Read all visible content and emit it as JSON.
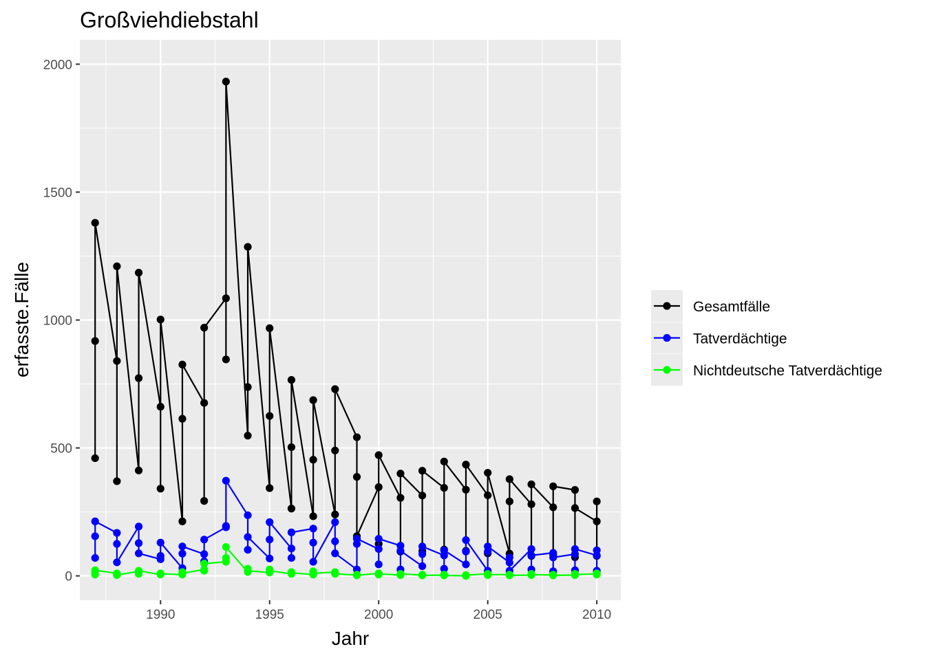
{
  "chart_data": {
    "type": "line",
    "title": "Großviehdiebstahl",
    "xlabel": "Jahr",
    "ylabel": "erfasste.Fälle",
    "xlim": [
      1986.3,
      2011.1
    ],
    "ylim": [
      -95,
      2095
    ],
    "x_ticks": [
      1990,
      1995,
      2000,
      2005,
      2010
    ],
    "y_ticks": [
      0,
      500,
      1000,
      1500,
      2000
    ],
    "grid": true,
    "legend_position": "right",
    "series": [
      {
        "name": "Gesamtfälle",
        "color": "#000000",
        "points": [
          [
            1987,
            460
          ],
          [
            1987,
            918
          ],
          [
            1987,
            1380
          ],
          [
            1988,
            840
          ],
          [
            1988,
            370
          ],
          [
            1988,
            1210
          ],
          [
            1989,
            412
          ],
          [
            1989,
            773
          ],
          [
            1989,
            1185
          ],
          [
            1990,
            661
          ],
          [
            1990,
            341
          ],
          [
            1990,
            1002
          ],
          [
            1991,
            213
          ],
          [
            1991,
            614
          ],
          [
            1991,
            826
          ],
          [
            1992,
            676
          ],
          [
            1992,
            293
          ],
          [
            1992,
            970
          ],
          [
            1993,
            1085
          ],
          [
            1993,
            846
          ],
          [
            1993,
            1932
          ],
          [
            1994,
            548
          ],
          [
            1994,
            738
          ],
          [
            1994,
            1286
          ],
          [
            1995,
            343
          ],
          [
            1995,
            625
          ],
          [
            1995,
            968
          ],
          [
            1996,
            263
          ],
          [
            1996,
            503
          ],
          [
            1996,
            766
          ],
          [
            1997,
            233
          ],
          [
            1997,
            454
          ],
          [
            1997,
            687
          ],
          [
            1998,
            240
          ],
          [
            1998,
            490
          ],
          [
            1998,
            730
          ],
          [
            1999,
            542
          ],
          [
            1999,
            387
          ],
          [
            1999,
            155
          ],
          [
            2000,
            347
          ],
          [
            2000,
            125
          ],
          [
            2000,
            472
          ],
          [
            2001,
            305
          ],
          [
            2001,
            95
          ],
          [
            2001,
            400
          ],
          [
            2002,
            314
          ],
          [
            2002,
            97
          ],
          [
            2002,
            411
          ],
          [
            2003,
            344
          ],
          [
            2003,
            103
          ],
          [
            2003,
            447
          ],
          [
            2004,
            337
          ],
          [
            2004,
            98
          ],
          [
            2004,
            435
          ],
          [
            2005,
            315
          ],
          [
            2005,
            88
          ],
          [
            2005,
            403
          ],
          [
            2006,
            87
          ],
          [
            2006,
            291
          ],
          [
            2006,
            378
          ],
          [
            2007,
            280
          ],
          [
            2007,
            78
          ],
          [
            2007,
            358
          ],
          [
            2008,
            268
          ],
          [
            2008,
            82
          ],
          [
            2008,
            350
          ],
          [
            2009,
            336
          ],
          [
            2009,
            73
          ],
          [
            2009,
            265
          ],
          [
            2010,
            213
          ],
          [
            2010,
            78
          ],
          [
            2010,
            291
          ]
        ]
      },
      {
        "name": "Tatverdächtige",
        "color": "#0000ff",
        "points": [
          [
            1987,
            70
          ],
          [
            1987,
            155
          ],
          [
            1987,
            213
          ],
          [
            1988,
            168
          ],
          [
            1988,
            125
          ],
          [
            1988,
            53
          ],
          [
            1989,
            193
          ],
          [
            1989,
            128
          ],
          [
            1989,
            88
          ],
          [
            1990,
            65
          ],
          [
            1990,
            78
          ],
          [
            1990,
            130
          ],
          [
            1991,
            30
          ],
          [
            1991,
            87
          ],
          [
            1991,
            115
          ],
          [
            1992,
            85
          ],
          [
            1992,
            57
          ],
          [
            1992,
            142
          ],
          [
            1993,
            190
          ],
          [
            1993,
            195
          ],
          [
            1993,
            372
          ],
          [
            1994,
            237
          ],
          [
            1994,
            102
          ],
          [
            1994,
            152
          ],
          [
            1995,
            68
          ],
          [
            1995,
            142
          ],
          [
            1995,
            210
          ],
          [
            1996,
            107
          ],
          [
            1996,
            70
          ],
          [
            1996,
            170
          ],
          [
            1997,
            185
          ],
          [
            1997,
            130
          ],
          [
            1997,
            55
          ],
          [
            1998,
            210
          ],
          [
            1998,
            135
          ],
          [
            1998,
            88
          ],
          [
            1999,
            25
          ],
          [
            1999,
            125
          ],
          [
            1999,
            145
          ],
          [
            2000,
            105
          ],
          [
            2000,
            45
          ],
          [
            2000,
            145
          ],
          [
            2001,
            118
          ],
          [
            2001,
            25
          ],
          [
            2001,
            98
          ],
          [
            2002,
            38
          ],
          [
            2002,
            85
          ],
          [
            2002,
            115
          ],
          [
            2003,
            80
          ],
          [
            2003,
            28
          ],
          [
            2003,
            100
          ],
          [
            2004,
            45
          ],
          [
            2004,
            95
          ],
          [
            2004,
            140
          ],
          [
            2005,
            20
          ],
          [
            2005,
            95
          ],
          [
            2005,
            115
          ],
          [
            2006,
            52
          ],
          [
            2006,
            72
          ],
          [
            2006,
            20
          ],
          [
            2007,
            105
          ],
          [
            2007,
            25
          ],
          [
            2007,
            80
          ],
          [
            2008,
            90
          ],
          [
            2008,
            18
          ],
          [
            2008,
            72
          ],
          [
            2009,
            85
          ],
          [
            2009,
            22
          ],
          [
            2009,
            105
          ],
          [
            2010,
            80
          ],
          [
            2010,
            20
          ],
          [
            2010,
            100
          ]
        ]
      },
      {
        "name": "Nichtdeutsche Tatverdächtige",
        "color": "#00ff00",
        "points": [
          [
            1987,
            15
          ],
          [
            1987,
            5
          ],
          [
            1987,
            22
          ],
          [
            1988,
            10
          ],
          [
            1988,
            5
          ],
          [
            1988,
            3
          ],
          [
            1989,
            18
          ],
          [
            1989,
            8
          ],
          [
            1989,
            20
          ],
          [
            1990,
            5
          ],
          [
            1990,
            10
          ],
          [
            1990,
            8
          ],
          [
            1991,
            5
          ],
          [
            1991,
            15
          ],
          [
            1991,
            10
          ],
          [
            1992,
            25
          ],
          [
            1992,
            20
          ],
          [
            1992,
            48
          ],
          [
            1993,
            55
          ],
          [
            1993,
            70
          ],
          [
            1993,
            113
          ],
          [
            1994,
            15
          ],
          [
            1994,
            28
          ],
          [
            1994,
            20
          ],
          [
            1995,
            13
          ],
          [
            1995,
            25
          ],
          [
            1995,
            20
          ],
          [
            1996,
            8
          ],
          [
            1996,
            15
          ],
          [
            1996,
            12
          ],
          [
            1997,
            5
          ],
          [
            1997,
            18
          ],
          [
            1997,
            10
          ],
          [
            1998,
            15
          ],
          [
            1998,
            10
          ],
          [
            1998,
            8
          ],
          [
            1999,
            3
          ],
          [
            1999,
            5
          ],
          [
            1999,
            2
          ],
          [
            2000,
            10
          ],
          [
            2000,
            5
          ],
          [
            2000,
            8
          ],
          [
            2001,
            3
          ],
          [
            2001,
            5
          ],
          [
            2001,
            8
          ],
          [
            2002,
            3
          ],
          [
            2002,
            5
          ],
          [
            2002,
            2
          ],
          [
            2003,
            3
          ],
          [
            2003,
            5
          ],
          [
            2003,
            2
          ],
          [
            2004,
            0
          ],
          [
            2004,
            2
          ],
          [
            2004,
            3
          ],
          [
            2005,
            8
          ],
          [
            2005,
            3
          ],
          [
            2005,
            5
          ],
          [
            2006,
            5
          ],
          [
            2006,
            3
          ],
          [
            2006,
            2
          ],
          [
            2007,
            3
          ],
          [
            2007,
            8
          ],
          [
            2007,
            5
          ],
          [
            2008,
            3
          ],
          [
            2008,
            5
          ],
          [
            2008,
            2
          ],
          [
            2009,
            3
          ],
          [
            2009,
            8
          ],
          [
            2009,
            5
          ],
          [
            2010,
            8
          ],
          [
            2010,
            5
          ],
          [
            2010,
            10
          ]
        ]
      }
    ]
  }
}
